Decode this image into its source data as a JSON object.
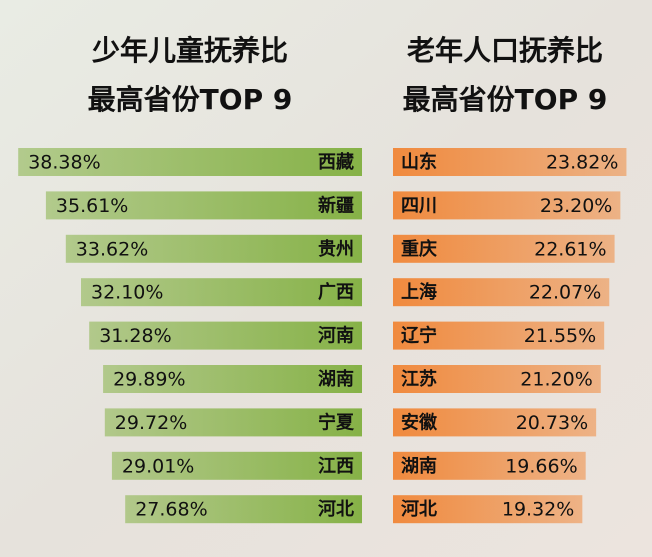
{
  "chart_data": [
    {
      "type": "bar",
      "orientation": "horizontal",
      "title": "少年儿童抚养比",
      "subtitle": "最高省份TOP 9",
      "categories": [
        "西藏",
        "新疆",
        "贵州",
        "广西",
        "河南",
        "湖南",
        "宁夏",
        "江西",
        "河北"
      ],
      "values": [
        38.38,
        35.61,
        33.62,
        32.1,
        31.28,
        29.89,
        29.72,
        29.01,
        27.68
      ],
      "value_labels": [
        "38.38%",
        "35.61%",
        "33.62%",
        "32.10%",
        "31.28%",
        "29.89%",
        "29.72%",
        "29.01%",
        "27.68%"
      ],
      "color": "#86b247",
      "xlim": [
        4,
        40
      ]
    },
    {
      "type": "bar",
      "orientation": "horizontal",
      "title": "老年人口抚养比",
      "subtitle": "最高省份TOP 9",
      "categories": [
        "山东",
        "四川",
        "重庆",
        "上海",
        "辽宁",
        "江苏",
        "安徽",
        "湖南",
        "河北"
      ],
      "values": [
        23.82,
        23.2,
        22.61,
        22.07,
        21.55,
        21.2,
        20.73,
        19.66,
        19.32
      ],
      "value_labels": [
        "23.82%",
        "23.20%",
        "22.61%",
        "22.07%",
        "21.55%",
        "21.20%",
        "20.73%",
        "19.66%",
        "19.32%"
      ],
      "color": "#f08a3e",
      "xlim": [
        0,
        25
      ]
    }
  ]
}
